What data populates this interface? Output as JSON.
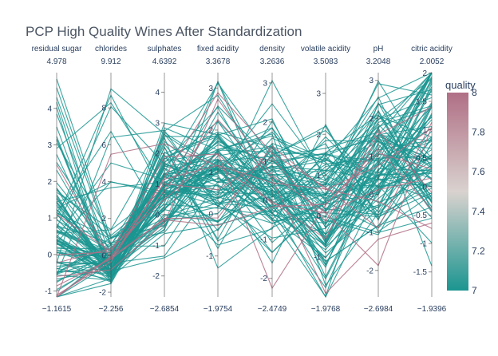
{
  "chart_data": {
    "type": "parallel-coordinates",
    "title": "PCP High Quality Wines  After Standardization",
    "dimensions": [
      {
        "label": "residual sugar",
        "range": [
          -1.1615,
          4.978
        ],
        "ticks": [
          -1,
          0,
          1,
          2,
          3,
          4
        ]
      },
      {
        "label": "chlorides",
        "range": [
          -2.256,
          9.912
        ],
        "ticks": [
          -2,
          0,
          2,
          4,
          6,
          8
        ]
      },
      {
        "label": "sulphates",
        "range": [
          -2.6854,
          4.6392
        ],
        "ticks": [
          -2,
          -1,
          0,
          1,
          2,
          3,
          4
        ]
      },
      {
        "label": "fixed acidity",
        "range": [
          -1.9754,
          3.3678
        ],
        "ticks": [
          -1,
          0,
          1,
          2,
          3
        ]
      },
      {
        "label": "density",
        "range": [
          -2.4749,
          3.2636
        ],
        "ticks": [
          -2,
          -1,
          0,
          1,
          2,
          3
        ]
      },
      {
        "label": "volatile acidity",
        "range": [
          -1.9768,
          3.5083
        ],
        "ticks": [
          -1,
          0,
          1,
          2,
          3
        ]
      },
      {
        "label": "pH",
        "range": [
          -2.6984,
          3.2048
        ],
        "ticks": [
          -2,
          -1,
          0,
          1,
          2,
          3
        ]
      },
      {
        "label": "citric acidity",
        "range": [
          -1.9396,
          2.0052
        ],
        "ticks": [
          -1.5,
          -1,
          -0.5,
          0,
          0.5,
          1,
          1.5,
          2
        ]
      }
    ],
    "range_labels_top": [
      "4.978",
      "9.912",
      "4.6392",
      "3.3678",
      "3.2636",
      "3.5083",
      "3.2048",
      "2.0052"
    ],
    "range_labels_bottom": [
      "−1.1615",
      "−2.256",
      "−2.6854",
      "−1.9754",
      "−2.4749",
      "−1.9768",
      "−2.6984",
      "−1.9396"
    ],
    "color_dimension": "quality",
    "colorscale": [
      "#1b9590",
      "#d9d2cf",
      "#b06f85"
    ],
    "color_range": [
      7,
      8
    ],
    "colorbar_title": "quality",
    "colorbar_ticks": [
      "8",
      "7.8",
      "7.6",
      "7.4",
      "7.2",
      "7"
    ],
    "line_count": 110,
    "line_colors": {
      "quality_7": "#1b9590",
      "quality_8": "#b06f85"
    }
  }
}
